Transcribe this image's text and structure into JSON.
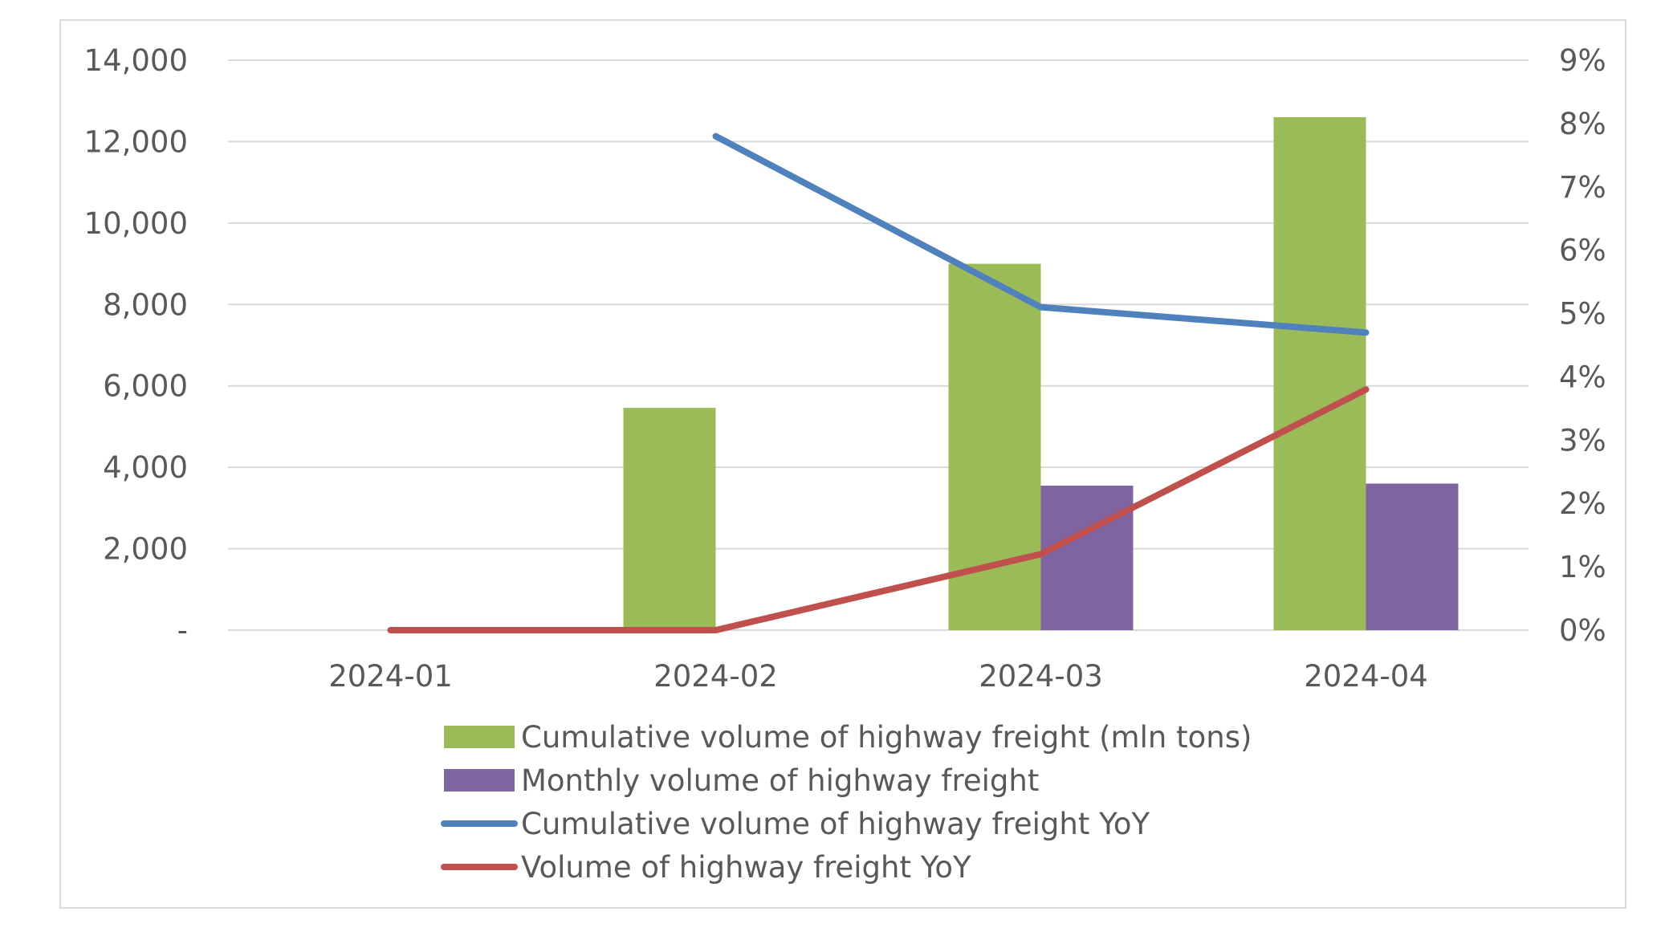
{
  "chart_data": {
    "type": "bar",
    "categories": [
      "2024-01",
      "2024-02",
      "2024-03",
      "2024-04"
    ],
    "series": [
      {
        "name": "Cumulative volume of highway freight (mln tons)",
        "kind": "bar",
        "axis": "left",
        "color": "#9bbb59",
        "values": [
          0,
          5460,
          9000,
          12600
        ]
      },
      {
        "name": "Monthly volume of highway freight",
        "kind": "bar",
        "axis": "left",
        "color": "#8064a2",
        "values": [
          0,
          0,
          3550,
          3600
        ]
      },
      {
        "name": "Cumulative volume of highway freight YoY",
        "kind": "line",
        "axis": "right",
        "color": "#4f81bd",
        "values": [
          null,
          7.8,
          5.1,
          4.7
        ]
      },
      {
        "name": "Volume of highway freight YoY",
        "kind": "line",
        "axis": "right",
        "color": "#c0504d",
        "values": [
          0,
          0,
          1.2,
          3.8
        ]
      }
    ],
    "y_left": {
      "min": 0,
      "max": 14000,
      "ticks": [
        0,
        2000,
        4000,
        6000,
        8000,
        10000,
        12000,
        14000
      ],
      "tick_labels": [
        "-",
        "2,000",
        "4,000",
        "6,000",
        "8,000",
        "10,000",
        "12,000",
        "14,000"
      ]
    },
    "y_right": {
      "min": 0,
      "max": 9,
      "ticks": [
        0,
        1,
        2,
        3,
        4,
        5,
        6,
        7,
        8,
        9
      ],
      "tick_labels": [
        "0%",
        "1%",
        "2%",
        "3%",
        "4%",
        "5%",
        "6%",
        "7%",
        "8%",
        "9%"
      ]
    },
    "grid": true,
    "legend_position": "bottom",
    "title": "",
    "xlabel": "",
    "ylabel": ""
  }
}
